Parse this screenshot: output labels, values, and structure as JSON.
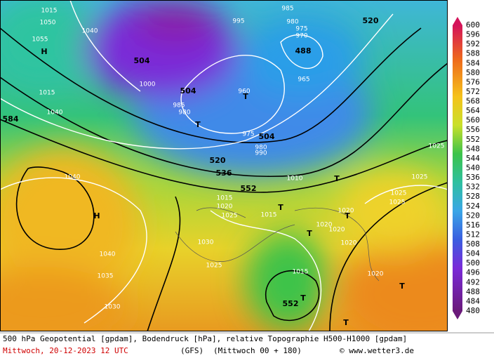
{
  "caption": {
    "line1": "500 hPa Geopotential [gpdam], Bodendruck [hPa], relative Topographie H500-H1000 [gpdam]",
    "date": "Mittwoch, 20-12-2023  12 UTC",
    "model": "(GFS)",
    "run": "(Mittwoch 00 + 180)",
    "source": "© www.wetter3.de"
  },
  "colorbar": {
    "labels": [
      600,
      596,
      592,
      588,
      584,
      580,
      576,
      572,
      568,
      564,
      560,
      556,
      552,
      548,
      544,
      540,
      536,
      532,
      528,
      524,
      520,
      516,
      512,
      508,
      504,
      500,
      496,
      492,
      488,
      484,
      480
    ]
  },
  "map_labels": [
    "1015",
    "1050",
    "1055",
    "H",
    "1040",
    "1015",
    "1040",
    "584",
    "504",
    "1000",
    "504",
    "985",
    "980",
    "T",
    "985",
    "980",
    "975",
    "970",
    "488",
    "965",
    "995",
    "960",
    "T",
    "520",
    "504",
    "975",
    "980",
    "990",
    "520",
    "536",
    "552",
    "1010",
    "1015",
    "1020",
    "1025",
    "1015",
    "T",
    "1040",
    "H",
    "1040",
    "1035",
    "1030",
    "1030",
    "1025",
    "1015",
    "552",
    "T",
    "T",
    "1020",
    "1020",
    "1020",
    "T",
    "1020",
    "1025",
    "1025",
    "1025",
    "1020",
    "T",
    "T",
    "1025",
    "T"
  ]
}
